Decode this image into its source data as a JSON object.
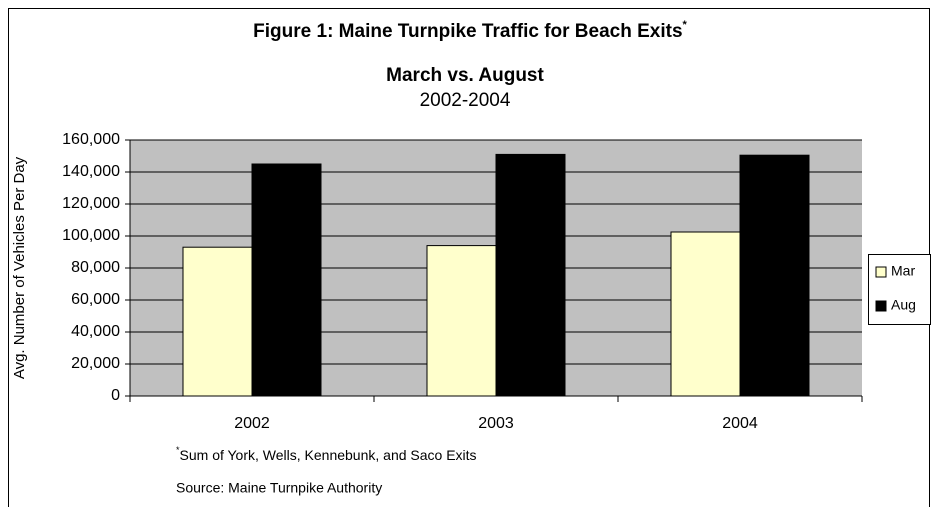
{
  "chart_data": {
    "type": "bar",
    "title": "Figure 1:   Maine Turnpike Traffic for Beach Exits",
    "title_mark": "*",
    "subtitle": "March vs. August",
    "subtitle2": "2002-2004",
    "y_label": "Avg. Number of Vehicles Per Day",
    "categories": [
      "2002",
      "2003",
      "2004"
    ],
    "series": [
      {
        "name": "Mar",
        "color": "#ffffcc",
        "values": [
          93000,
          94000,
          102500
        ]
      },
      {
        "name": "Aug",
        "color": "#000000",
        "values": [
          145000,
          151000,
          150500
        ]
      }
    ],
    "ylim": [
      0,
      160000
    ],
    "yticks": [
      0,
      {
        "value": 20000,
        "label": "20,000"
      },
      {
        "value": 40000,
        "label": "40,000"
      },
      {
        "value": 60000,
        "label": "60,000"
      },
      {
        "value": 80000,
        "label": "80,000"
      },
      {
        "value": 100000,
        "label": "100,000"
      },
      {
        "value": 120000,
        "label": "120,000"
      },
      {
        "value": 140000,
        "label": "140,000"
      },
      {
        "value": 160000,
        "label": "160,000"
      }
    ],
    "grid": true,
    "legend": "right",
    "footnote_mark": "*",
    "footnote": "Sum of York, Wells, Kennebunk, and Saco Exits",
    "source": "Source:  Maine Turnpike Authority"
  }
}
